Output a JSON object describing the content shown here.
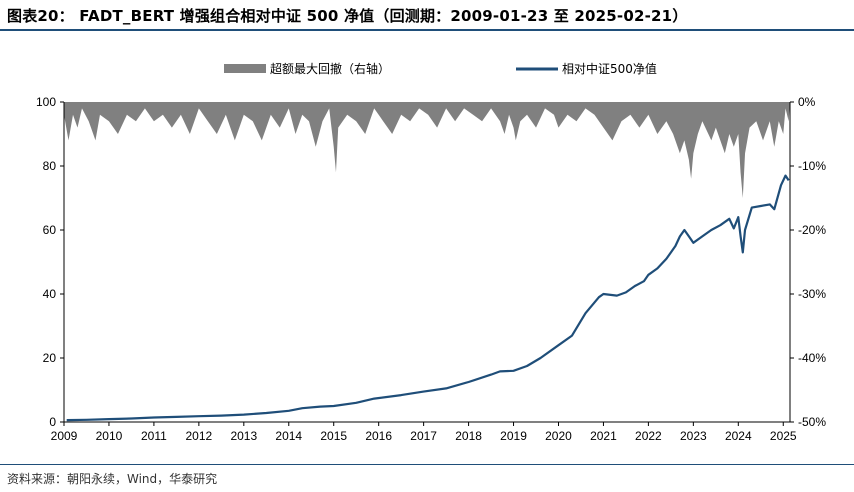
{
  "header": {
    "title": "图表20： FADT_BERT 增强组合相对中证 500 净值（回测期：2009-01-23 至 2025-02-21）"
  },
  "footer": {
    "source": "资料来源：朝阳永续，Wind，华泰研究"
  },
  "colors": {
    "line": "#1f4e79",
    "drawdown": "#808080",
    "rule": "#1f4e79"
  },
  "chart_data": {
    "type": "line",
    "legend_position": "top-center",
    "grid": false,
    "x_ticks": [
      "2009",
      "2010",
      "2011",
      "2012",
      "2013",
      "2014",
      "2015",
      "2016",
      "2017",
      "2018",
      "2019",
      "2020",
      "2021",
      "2022",
      "2023",
      "2024",
      "2025"
    ],
    "x_range": [
      2009.0,
      2025.15
    ],
    "y_left": {
      "range": [
        0,
        100
      ],
      "ticks": [
        "0",
        "20",
        "40",
        "60",
        "80",
        "100"
      ]
    },
    "y_right": {
      "range": [
        -0.5,
        0.0
      ],
      "ticks": [
        "0%",
        "-10%",
        "-20%",
        "-30%",
        "-40%",
        "-50%"
      ]
    },
    "series": [
      {
        "name": "相对中证500净值",
        "kind": "line",
        "axis": "left",
        "points": [
          [
            2009.06,
            0.6
          ],
          [
            2009.5,
            0.7
          ],
          [
            2010.0,
            0.9
          ],
          [
            2010.5,
            1.1
          ],
          [
            2011.0,
            1.4
          ],
          [
            2011.5,
            1.6
          ],
          [
            2012.0,
            1.8
          ],
          [
            2012.5,
            2.0
          ],
          [
            2013.0,
            2.3
          ],
          [
            2013.5,
            2.8
          ],
          [
            2014.0,
            3.5
          ],
          [
            2014.3,
            4.3
          ],
          [
            2014.7,
            4.8
          ],
          [
            2015.0,
            5.0
          ],
          [
            2015.5,
            6.0
          ],
          [
            2015.9,
            7.3
          ],
          [
            2016.5,
            8.4
          ],
          [
            2017.0,
            9.5
          ],
          [
            2017.5,
            10.5
          ],
          [
            2018.0,
            12.5
          ],
          [
            2018.5,
            14.8
          ],
          [
            2018.7,
            15.8
          ],
          [
            2019.0,
            16.0
          ],
          [
            2019.3,
            17.5
          ],
          [
            2019.6,
            20.0
          ],
          [
            2020.0,
            24.0
          ],
          [
            2020.3,
            27.0
          ],
          [
            2020.6,
            34.0
          ],
          [
            2020.9,
            39.0
          ],
          [
            2021.0,
            40.0
          ],
          [
            2021.3,
            39.5
          ],
          [
            2021.5,
            40.5
          ],
          [
            2021.7,
            42.5
          ],
          [
            2021.9,
            44.0
          ],
          [
            2022.0,
            46.0
          ],
          [
            2022.2,
            48.0
          ],
          [
            2022.4,
            51.0
          ],
          [
            2022.6,
            55.0
          ],
          [
            2022.7,
            58.0
          ],
          [
            2022.8,
            60.0
          ],
          [
            2022.9,
            58.0
          ],
          [
            2023.0,
            56.0
          ],
          [
            2023.2,
            58.0
          ],
          [
            2023.4,
            60.0
          ],
          [
            2023.6,
            61.5
          ],
          [
            2023.8,
            63.5
          ],
          [
            2023.9,
            60.5
          ],
          [
            2024.0,
            64.0
          ],
          [
            2024.05,
            58.0
          ],
          [
            2024.1,
            53.0
          ],
          [
            2024.15,
            60.0
          ],
          [
            2024.3,
            67.0
          ],
          [
            2024.5,
            67.5
          ],
          [
            2024.7,
            68.0
          ],
          [
            2024.8,
            66.5
          ],
          [
            2024.95,
            74.0
          ],
          [
            2025.05,
            77.0
          ],
          [
            2025.12,
            75.5
          ]
        ]
      },
      {
        "name": "超额最大回撤（右轴）",
        "kind": "area",
        "axis": "right",
        "points": [
          [
            2009.0,
            -0.02
          ],
          [
            2009.1,
            -0.06
          ],
          [
            2009.2,
            -0.02
          ],
          [
            2009.3,
            -0.04
          ],
          [
            2009.4,
            -0.01
          ],
          [
            2009.55,
            -0.03
          ],
          [
            2009.7,
            -0.06
          ],
          [
            2009.8,
            -0.02
          ],
          [
            2010.0,
            -0.03
          ],
          [
            2010.2,
            -0.05
          ],
          [
            2010.4,
            -0.02
          ],
          [
            2010.6,
            -0.03
          ],
          [
            2010.8,
            -0.01
          ],
          [
            2011.0,
            -0.03
          ],
          [
            2011.2,
            -0.02
          ],
          [
            2011.4,
            -0.04
          ],
          [
            2011.6,
            -0.02
          ],
          [
            2011.8,
            -0.05
          ],
          [
            2012.0,
            -0.01
          ],
          [
            2012.2,
            -0.03
          ],
          [
            2012.4,
            -0.05
          ],
          [
            2012.6,
            -0.02
          ],
          [
            2012.8,
            -0.06
          ],
          [
            2013.0,
            -0.02
          ],
          [
            2013.2,
            -0.03
          ],
          [
            2013.4,
            -0.06
          ],
          [
            2013.6,
            -0.02
          ],
          [
            2013.8,
            -0.04
          ],
          [
            2014.0,
            -0.01
          ],
          [
            2014.15,
            -0.05
          ],
          [
            2014.3,
            -0.02
          ],
          [
            2014.45,
            -0.03
          ],
          [
            2014.6,
            -0.07
          ],
          [
            2014.75,
            -0.03
          ],
          [
            2014.9,
            -0.01
          ],
          [
            2015.0,
            -0.07
          ],
          [
            2015.05,
            -0.11
          ],
          [
            2015.1,
            -0.04
          ],
          [
            2015.3,
            -0.02
          ],
          [
            2015.5,
            -0.03
          ],
          [
            2015.7,
            -0.05
          ],
          [
            2015.9,
            -0.01
          ],
          [
            2016.1,
            -0.03
          ],
          [
            2016.3,
            -0.05
          ],
          [
            2016.5,
            -0.02
          ],
          [
            2016.7,
            -0.03
          ],
          [
            2016.9,
            -0.01
          ],
          [
            2017.1,
            -0.02
          ],
          [
            2017.3,
            -0.04
          ],
          [
            2017.5,
            -0.01
          ],
          [
            2017.7,
            -0.03
          ],
          [
            2017.9,
            -0.01
          ],
          [
            2018.1,
            -0.02
          ],
          [
            2018.3,
            -0.03
          ],
          [
            2018.5,
            -0.01
          ],
          [
            2018.7,
            -0.03
          ],
          [
            2018.8,
            -0.05
          ],
          [
            2018.9,
            -0.02
          ],
          [
            2019.0,
            -0.04
          ],
          [
            2019.05,
            -0.06
          ],
          [
            2019.15,
            -0.03
          ],
          [
            2019.3,
            -0.02
          ],
          [
            2019.5,
            -0.04
          ],
          [
            2019.7,
            -0.01
          ],
          [
            2019.9,
            -0.02
          ],
          [
            2020.0,
            -0.04
          ],
          [
            2020.2,
            -0.02
          ],
          [
            2020.4,
            -0.03
          ],
          [
            2020.6,
            -0.01
          ],
          [
            2020.8,
            -0.02
          ],
          [
            2021.0,
            -0.04
          ],
          [
            2021.2,
            -0.06
          ],
          [
            2021.4,
            -0.03
          ],
          [
            2021.6,
            -0.02
          ],
          [
            2021.8,
            -0.04
          ],
          [
            2022.0,
            -0.02
          ],
          [
            2022.2,
            -0.05
          ],
          [
            2022.4,
            -0.03
          ],
          [
            2022.55,
            -0.05
          ],
          [
            2022.7,
            -0.08
          ],
          [
            2022.8,
            -0.06
          ],
          [
            2022.9,
            -0.09
          ],
          [
            2022.95,
            -0.12
          ],
          [
            2023.0,
            -0.08
          ],
          [
            2023.1,
            -0.05
          ],
          [
            2023.2,
            -0.03
          ],
          [
            2023.4,
            -0.06
          ],
          [
            2023.5,
            -0.04
          ],
          [
            2023.7,
            -0.08
          ],
          [
            2023.8,
            -0.05
          ],
          [
            2023.9,
            -0.07
          ],
          [
            2024.0,
            -0.05
          ],
          [
            2024.05,
            -0.11
          ],
          [
            2024.1,
            -0.15
          ],
          [
            2024.15,
            -0.08
          ],
          [
            2024.25,
            -0.04
          ],
          [
            2024.4,
            -0.03
          ],
          [
            2024.55,
            -0.06
          ],
          [
            2024.7,
            -0.03
          ],
          [
            2024.8,
            -0.07
          ],
          [
            2024.9,
            -0.03
          ],
          [
            2025.0,
            -0.05
          ],
          [
            2025.05,
            -0.01
          ],
          [
            2025.12,
            -0.03
          ],
          [
            2025.15,
            0.0
          ]
        ]
      }
    ]
  }
}
